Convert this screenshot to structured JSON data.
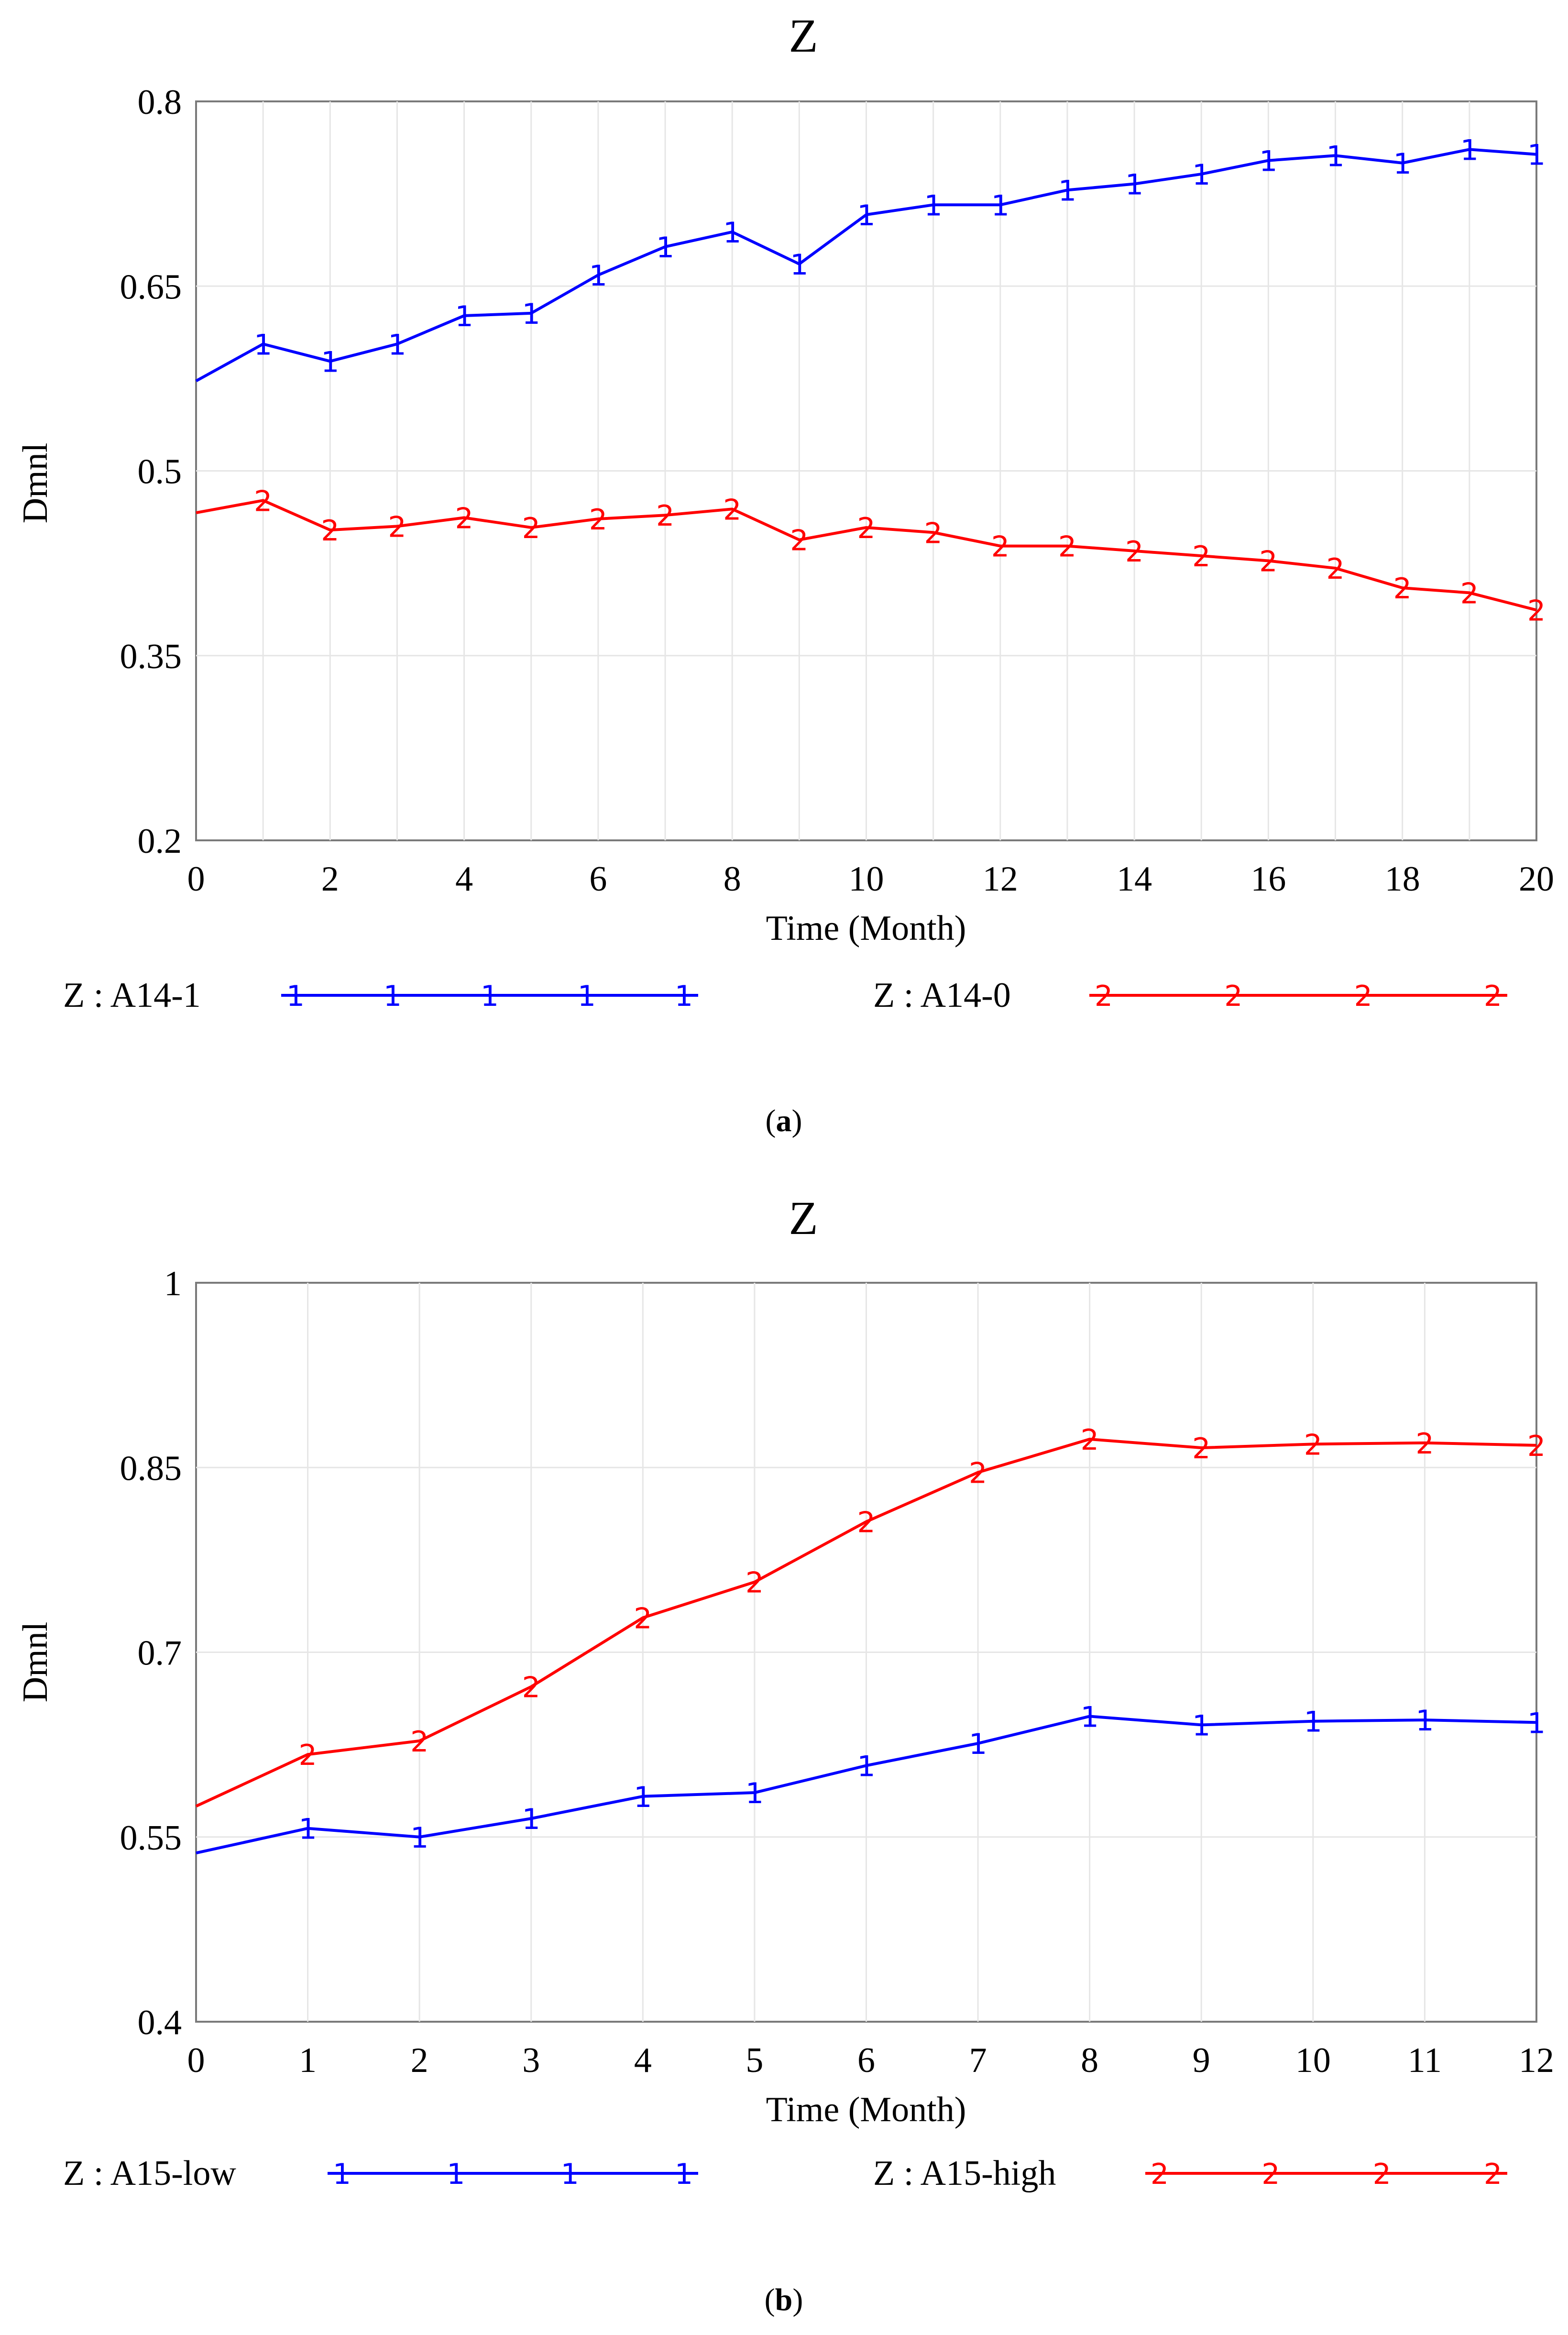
{
  "chart_data": [
    {
      "type": "line",
      "title": "Z",
      "xlabel": "Time (Month)",
      "ylabel": "Dmnl",
      "xlim": [
        0,
        20
      ],
      "ylim": [
        0.2,
        0.8
      ],
      "xticks": [
        0,
        2,
        4,
        6,
        8,
        10,
        12,
        14,
        16,
        18,
        20
      ],
      "yticks": [
        0.2,
        0.35,
        0.5,
        0.65,
        0.8
      ],
      "ytick_labels": [
        "0.2",
        "0.35",
        "0.5",
        "0.65",
        "0.8"
      ],
      "grid": true,
      "x": [
        0,
        1,
        2,
        3,
        4,
        5,
        6,
        7,
        8,
        9,
        10,
        11,
        12,
        13,
        14,
        15,
        16,
        17,
        18,
        19,
        20
      ],
      "series": [
        {
          "name": "Z : A14-1",
          "marker": "1",
          "color": "#0000ff",
          "values": [
            0.573,
            0.603,
            0.589,
            0.603,
            0.626,
            0.628,
            0.659,
            0.682,
            0.694,
            0.668,
            0.708,
            0.716,
            0.716,
            0.728,
            0.733,
            0.741,
            0.752,
            0.756,
            0.75,
            0.761,
            0.757
          ]
        },
        {
          "name": "Z : A14-0",
          "marker": "2",
          "color": "#ff0000",
          "values": [
            0.466,
            0.476,
            0.452,
            0.455,
            0.462,
            0.454,
            0.461,
            0.464,
            0.469,
            0.444,
            0.454,
            0.45,
            0.439,
            0.439,
            0.435,
            0.431,
            0.427,
            0.421,
            0.405,
            0.401,
            0.387
          ]
        }
      ],
      "caption_letter": "a"
    },
    {
      "type": "line",
      "title": "Z",
      "xlabel": "Time (Month)",
      "ylabel": "Dmnl",
      "xlim": [
        0,
        12
      ],
      "ylim": [
        0.4,
        1.0
      ],
      "xticks": [
        0,
        1,
        2,
        3,
        4,
        5,
        6,
        7,
        8,
        9,
        10,
        11,
        12
      ],
      "yticks": [
        0.4,
        0.55,
        0.7,
        0.85,
        1.0
      ],
      "ytick_labels": [
        "0.4",
        "0.55",
        "0.7",
        "0.85",
        "1"
      ],
      "grid": true,
      "x": [
        0,
        1,
        2,
        3,
        4,
        5,
        6,
        7,
        8,
        9,
        10,
        11,
        12
      ],
      "series": [
        {
          "name": "Z : A15-low",
          "marker": "1",
          "color": "#0000ff",
          "values": [
            0.537,
            0.557,
            0.55,
            0.565,
            0.583,
            0.586,
            0.608,
            0.626,
            0.648,
            0.641,
            0.644,
            0.645,
            0.643
          ]
        },
        {
          "name": "Z : A15-high",
          "marker": "2",
          "color": "#ff0000",
          "values": [
            0.575,
            0.617,
            0.628,
            0.672,
            0.728,
            0.757,
            0.806,
            0.846,
            0.873,
            0.866,
            0.869,
            0.87,
            0.868
          ]
        }
      ],
      "caption_letter": "b"
    }
  ]
}
